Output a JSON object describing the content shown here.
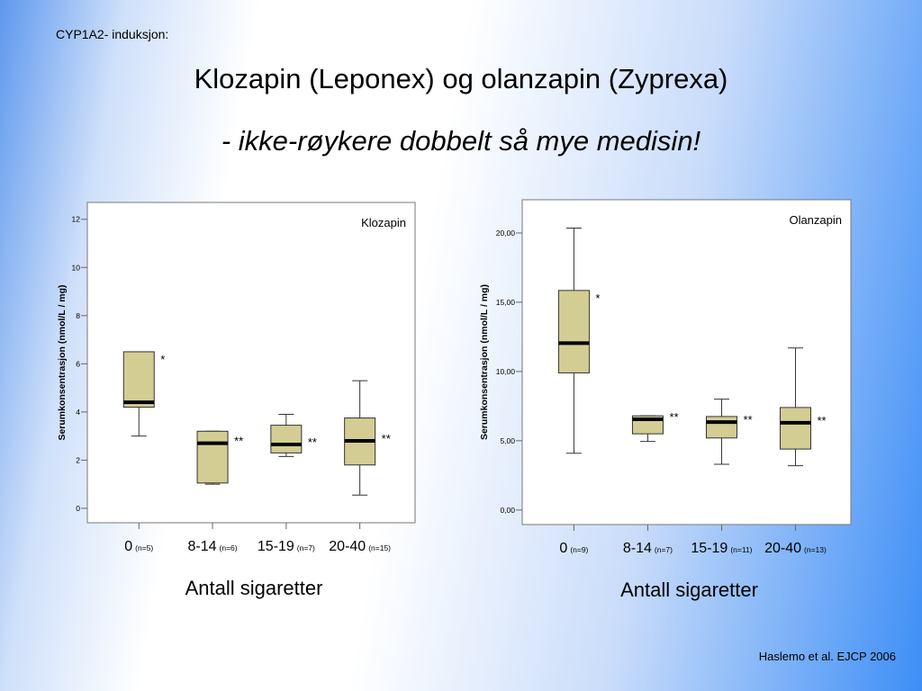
{
  "slide": {
    "header": "CYP1A2- induksjon:",
    "title": "Klozapin (Leponex) og olanzapin (Zyprexa)",
    "subtitle": "- ikke-røykere dobbelt så mye medisin!",
    "citation": "Haslemo et al. EJCP 2006"
  },
  "chart_data": [
    {
      "type": "boxplot",
      "title": "Klozapin",
      "y_label": "Serumkonsentrasjon (nmol/L / mg)",
      "x_label": "Antall sigaretter",
      "categories": [
        "0",
        "8-14",
        "15-19",
        "20-40"
      ],
      "n_labels": [
        "(n=5)",
        "(n=6)",
        "(n=7)",
        "(n=15)"
      ],
      "annotations": [
        "*",
        "**",
        "**",
        "**"
      ],
      "color": "#d3cd93",
      "boxes": [
        {
          "min": 3.0,
          "q1": 4.2,
          "median": 4.4,
          "q3": 6.5,
          "max": 6.5
        },
        {
          "min": 1.0,
          "q1": 1.05,
          "median": 2.7,
          "q3": 3.2,
          "max": 3.2
        },
        {
          "min": 2.15,
          "q1": 2.3,
          "median": 2.65,
          "q3": 3.45,
          "max": 3.9
        },
        {
          "min": 0.55,
          "q1": 1.8,
          "median": 2.8,
          "q3": 3.75,
          "max": 5.3
        }
      ],
      "ylim": [
        -0.6,
        12.7
      ],
      "yticks": [
        0,
        2,
        4,
        6,
        8,
        10,
        12
      ]
    },
    {
      "type": "boxplot",
      "title": "Olanzapin",
      "y_label": "Serumkonsentrasjon (nmol/L / mg)",
      "x_label": "Antall sigaretter",
      "categories": [
        "0",
        "8-14",
        "15-19",
        "20-40"
      ],
      "n_labels": [
        "(n=9)",
        "(n=7)",
        "(n=11)",
        "(n=13)"
      ],
      "annotations": [
        "*",
        "**",
        "**",
        "**"
      ],
      "color": "#d3cd93",
      "boxes": [
        {
          "min": 4.1,
          "q1": 9.9,
          "median": 12.05,
          "q3": 15.85,
          "max": 20.35
        },
        {
          "min": 4.95,
          "q1": 5.5,
          "median": 6.55,
          "q3": 6.8,
          "max": 6.8
        },
        {
          "min": 3.3,
          "q1": 5.2,
          "median": 6.35,
          "q3": 6.75,
          "max": 8.0
        },
        {
          "min": 3.2,
          "q1": 4.4,
          "median": 6.3,
          "q3": 7.4,
          "max": 11.7
        }
      ],
      "ylim": [
        -1.05,
        22.4
      ],
      "yticks": [
        {
          "value": 0,
          "label": "0,00"
        },
        {
          "value": 5,
          "label": "5,00"
        },
        {
          "value": 10,
          "label": "10,00"
        },
        {
          "value": 15,
          "label": "15,00"
        },
        {
          "value": 20,
          "label": "20,00"
        }
      ]
    }
  ]
}
